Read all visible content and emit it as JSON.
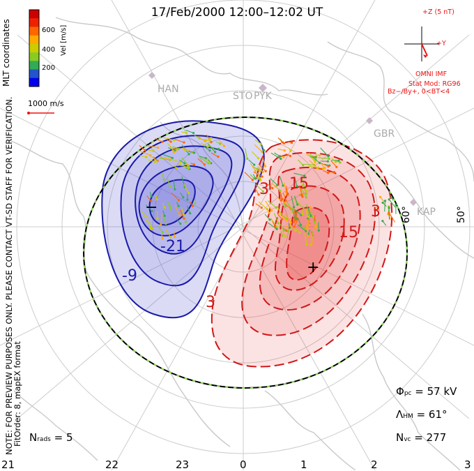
{
  "title": "17/Feb/2000 12:00–12:02 UT",
  "note_line1": "NOTE: FOR PREVIEW PURPOSES ONLY. PLEASE CONTACT VT-SD STAFF FOR VERIFICATION.",
  "note_line2": "FitOrder: 8, mapEX format",
  "colorbar": {
    "title": "MLT coordinates",
    "unit_label": "Vel [m/s]",
    "ticks": [
      "200",
      "400",
      "600"
    ],
    "colors": [
      "#0000ee",
      "#2255cc",
      "#33aa55",
      "#88cc22",
      "#cccc00",
      "#ffaa00",
      "#ff6600",
      "#ee2200",
      "#cc0000"
    ]
  },
  "velocity_scale_label": "1000 m/s",
  "imf": {
    "z_label": "+Z (5 nT)",
    "y_label": "+Y",
    "source": "OMNI IMF",
    "model_line1": "Stat Mod: RG96",
    "model_line2": "Bz−/By+, 0<BT<4"
  },
  "stations": [
    "HAN",
    "STO",
    "PYK",
    "GBR",
    "KAP"
  ],
  "latitude_labels": [
    "60°",
    "50°"
  ],
  "mlt_labels": [
    "21",
    "22",
    "23",
    "0",
    "1",
    "2",
    "3"
  ],
  "contour_labels": {
    "negative": [
      "-9",
      "-21"
    ],
    "positive": [
      "3",
      "15",
      "15",
      "3",
      "3"
    ]
  },
  "potential_markers": {
    "min": "−",
    "max": "+"
  },
  "stats": {
    "phi_symbol": "Φ",
    "phi_sub": "pc",
    "phi_value": "= 57 kV",
    "lambda_symbol": "Λ",
    "lambda_sub": "HM",
    "lambda_value": "= 61°",
    "nvc_symbol": "N",
    "nvc_sub": "vc",
    "nvc_value": "= 277",
    "nrads_symbol": "N",
    "nrads_sub": "rads",
    "nrads_value": "= 5"
  },
  "colors": {
    "negative_contour": "#1a1aa8",
    "positive_contour": "#d01818",
    "negative_fill": "#5a5ad8",
    "positive_fill": "#e83a3a",
    "grid": "#cccccc",
    "land": "#d8d8d8",
    "hmb": "#000000",
    "hmb_dash": "#88dd55"
  }
}
